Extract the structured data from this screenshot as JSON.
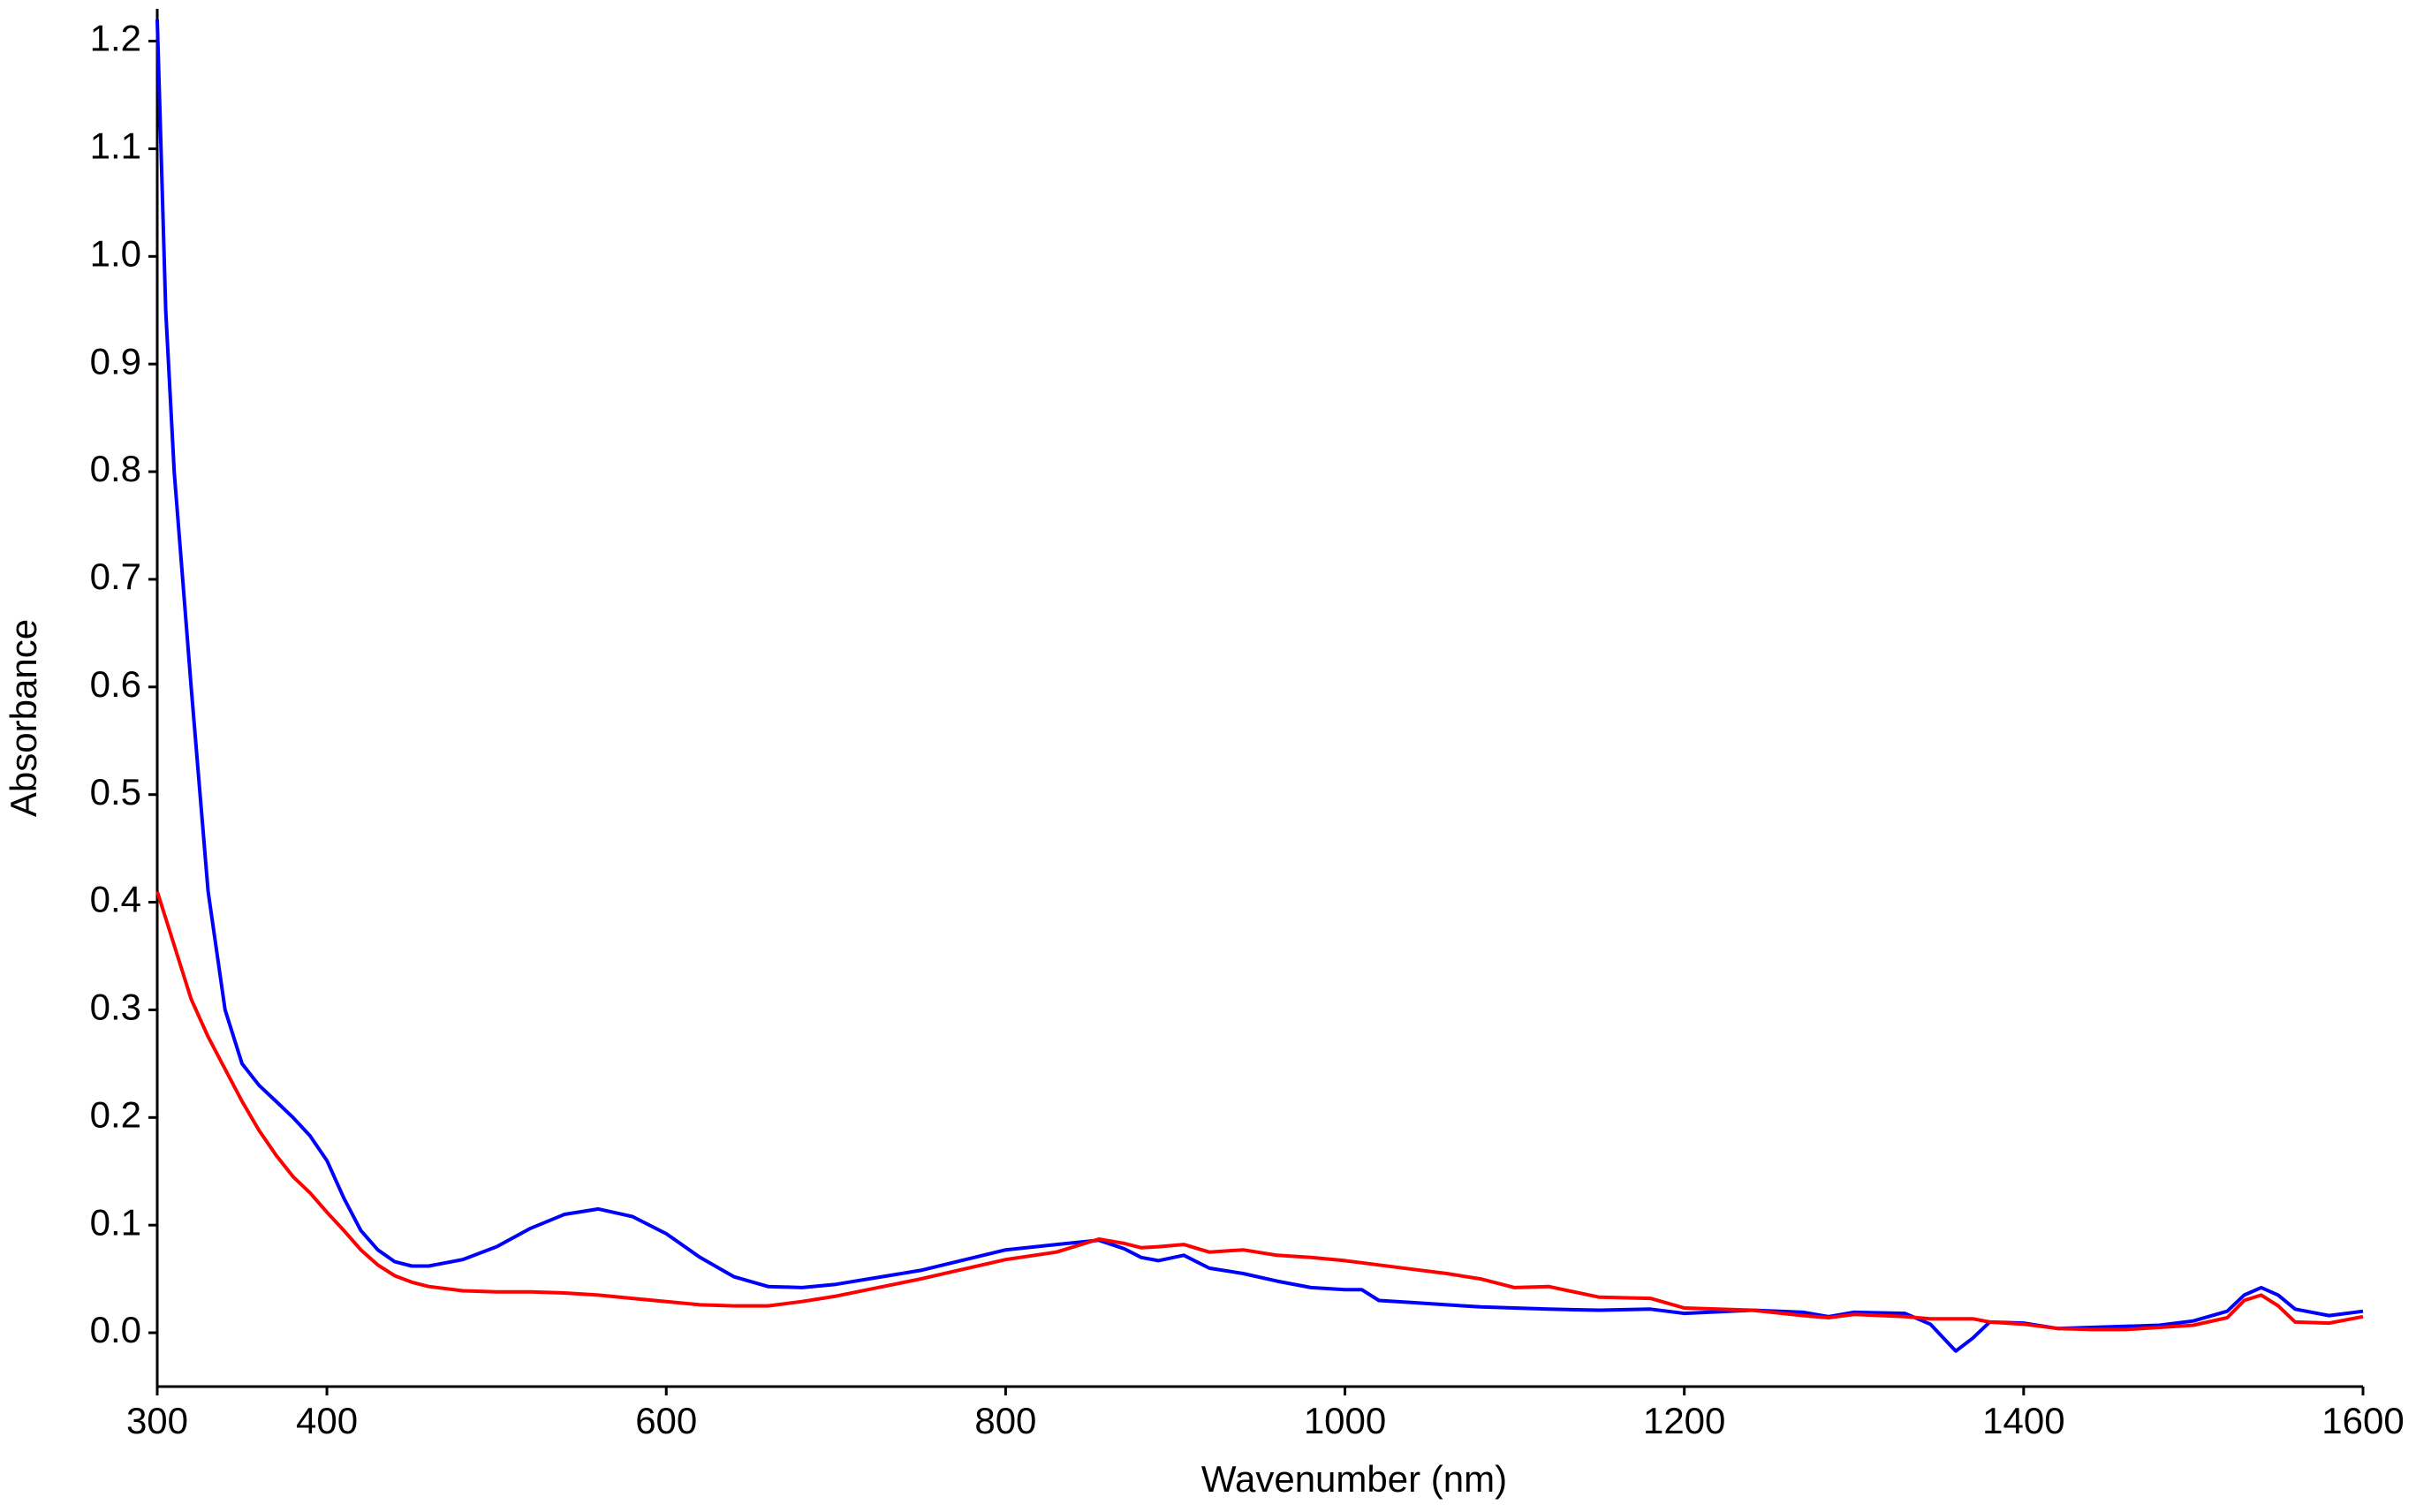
{
  "chart_data": {
    "type": "line",
    "x_label": "Wavenumber (nm)",
    "y_label": "Absorbance",
    "x": [
      300,
      305,
      310,
      315,
      320,
      330,
      340,
      350,
      360,
      370,
      380,
      390,
      400,
      410,
      420,
      430,
      440,
      450,
      460,
      480,
      500,
      520,
      540,
      560,
      580,
      600,
      620,
      640,
      660,
      680,
      700,
      750,
      800,
      830,
      855,
      870,
      880,
      890,
      905,
      920,
      940,
      960,
      980,
      1000,
      1010,
      1020,
      1040,
      1060,
      1080,
      1100,
      1120,
      1150,
      1180,
      1200,
      1240,
      1270,
      1285,
      1300,
      1330,
      1345,
      1360,
      1370,
      1380,
      1400,
      1420,
      1440,
      1460,
      1480,
      1500,
      1520,
      1530,
      1540,
      1550,
      1560,
      1580,
      1600
    ],
    "series": [
      {
        "color": "#0000ff",
        "values": [
          1.22,
          0.95,
          0.8,
          0.7,
          0.6,
          0.41,
          0.3,
          0.25,
          0.23,
          0.215,
          0.2,
          0.183,
          0.16,
          0.125,
          0.095,
          0.077,
          0.066,
          0.062,
          0.062,
          0.068,
          0.08,
          0.097,
          0.11,
          0.115,
          0.108,
          0.092,
          0.07,
          0.052,
          0.043,
          0.042,
          0.045,
          0.058,
          0.077,
          0.082,
          0.086,
          0.078,
          0.07,
          0.067,
          0.072,
          0.06,
          0.055,
          0.048,
          0.042,
          0.04,
          0.04,
          0.03,
          0.028,
          0.026,
          0.024,
          0.023,
          0.022,
          0.021,
          0.022,
          0.018,
          0.021,
          0.019,
          0.015,
          0.019,
          0.018,
          0.008,
          -0.017,
          -0.005,
          0.01,
          0.009,
          0.004,
          0.005,
          0.006,
          0.007,
          0.011,
          0.02,
          0.035,
          0.042,
          0.035,
          0.022,
          0.016,
          0.02
        ]
      },
      {
        "color": "#ff0000",
        "values": [
          0.41,
          0.385,
          0.36,
          0.335,
          0.31,
          0.275,
          0.245,
          0.215,
          0.188,
          0.165,
          0.145,
          0.13,
          0.112,
          0.095,
          0.077,
          0.063,
          0.053,
          0.047,
          0.043,
          0.039,
          0.038,
          0.038,
          0.037,
          0.035,
          0.032,
          0.029,
          0.026,
          0.025,
          0.025,
          0.029,
          0.034,
          0.05,
          0.068,
          0.075,
          0.087,
          0.083,
          0.079,
          0.08,
          0.082,
          0.075,
          0.077,
          0.072,
          0.07,
          0.067,
          0.065,
          0.063,
          0.059,
          0.055,
          0.05,
          0.042,
          0.043,
          0.033,
          0.032,
          0.023,
          0.021,
          0.016,
          0.014,
          0.017,
          0.015,
          0.013,
          0.013,
          0.013,
          0.01,
          0.008,
          0.004,
          0.003,
          0.003,
          0.005,
          0.007,
          0.014,
          0.03,
          0.035,
          0.025,
          0.01,
          0.009,
          0.015
        ]
      }
    ],
    "xlim": [
      300,
      1600
    ],
    "ylim": [
      -0.05,
      1.23
    ],
    "xticks": [
      300,
      400,
      600,
      800,
      1000,
      1200,
      1400,
      1600
    ],
    "yticks": [
      {
        "value": 0,
        "label": "0.0"
      },
      0.1,
      0.2,
      0.3,
      0.4,
      0.5,
      0.6,
      0.7,
      0.8,
      0.9,
      {
        "value": 1,
        "label": "1.0"
      },
      1.1,
      1.2
    ],
    "grid": false
  }
}
